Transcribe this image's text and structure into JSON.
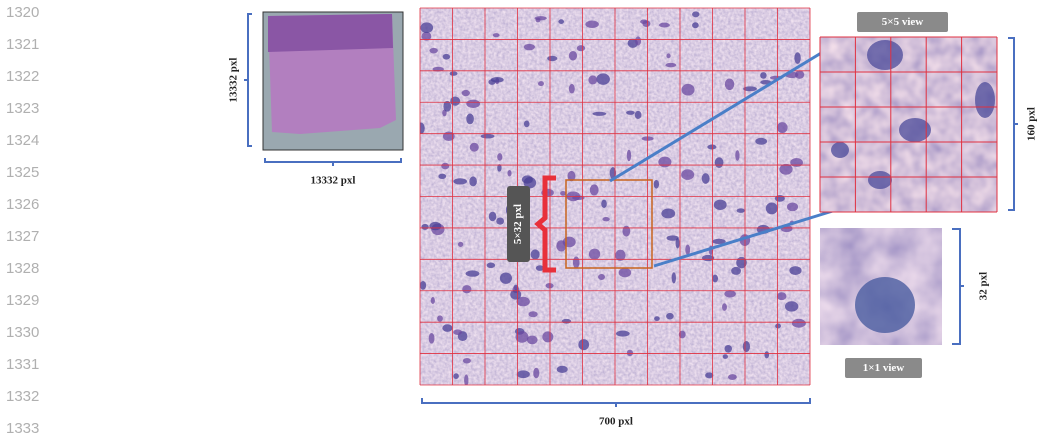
{
  "line_numbers": [
    "1320",
    "1321",
    "1322",
    "1323",
    "1324",
    "1325",
    "1326",
    "1327",
    "1328",
    "1329",
    "1330",
    "1331",
    "1332",
    "1333"
  ],
  "figure": {
    "thumbnail_height_label": "13332 pxl",
    "thumbnail_width_label": "13332 pxl",
    "patch_label": "5×32 pxl",
    "zoom_view_label": "5×5 view",
    "zoom_size_label": "160 pxl",
    "single_size_label": "32 pxl",
    "single_view_label": "1×1 view",
    "main_width_label": "700 pxl"
  }
}
